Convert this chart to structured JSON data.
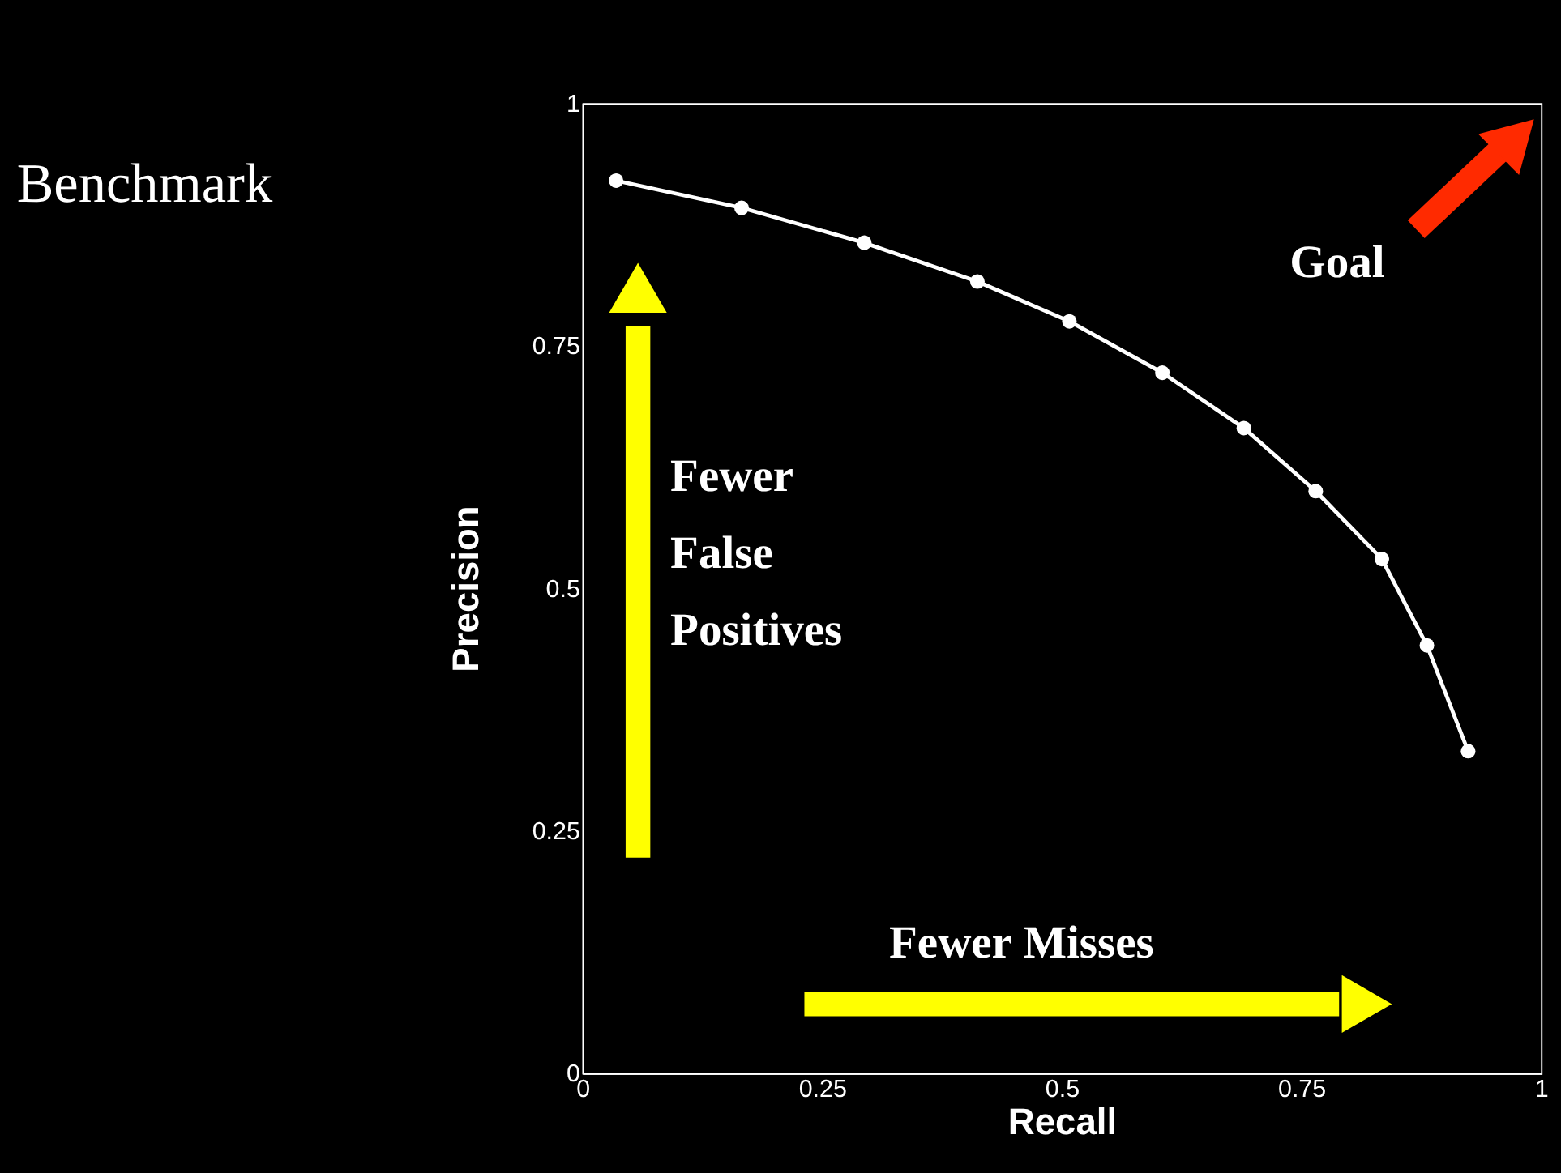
{
  "chart_data": {
    "type": "line",
    "title": "Benchmark",
    "xlabel": "Recall",
    "ylabel": "Precision",
    "x": [
      0.035,
      0.166,
      0.294,
      0.412,
      0.508,
      0.605,
      0.69,
      0.765,
      0.834,
      0.881,
      0.924
    ],
    "series": [
      {
        "color": "#ffffff",
        "values": [
          0.92,
          0.892,
          0.856,
          0.816,
          0.775,
          0.722,
          0.665,
          0.6,
          0.53,
          0.441,
          0.332
        ]
      }
    ],
    "marker": "circle",
    "line_style": "solid",
    "grid": false,
    "xlim": [
      0,
      1
    ],
    "ylim": [
      0,
      1
    ],
    "xticks": [
      {
        "value": 0,
        "label": "0"
      },
      {
        "value": 0.25,
        "label": "0.25"
      },
      {
        "value": 0.5,
        "label": "0.5"
      },
      {
        "value": 0.75,
        "label": "0.75"
      },
      {
        "value": 1,
        "label": "1"
      }
    ],
    "yticks": [
      {
        "value": 0,
        "label": "0"
      },
      {
        "value": 0.25,
        "label": "0.25"
      },
      {
        "value": 0.5,
        "label": "0.5"
      },
      {
        "value": 0.75,
        "label": "0.75"
      },
      {
        "value": 1,
        "label": "1"
      }
    ],
    "annotations": [
      "Fewer False Positives",
      "Fewer Misses",
      "Goal"
    ]
  }
}
